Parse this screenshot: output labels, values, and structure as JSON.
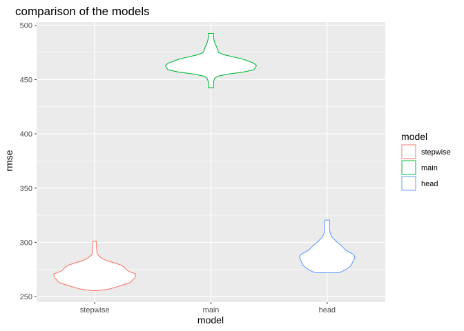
{
  "chart_data": {
    "type": "violin",
    "title": "comparison of the models",
    "xlabel": "model",
    "ylabel": "rmse",
    "categories": [
      "stepwise",
      "main",
      "head"
    ],
    "ylim": [
      245,
      503
    ],
    "yticks": [
      250,
      300,
      350,
      400,
      450,
      500
    ],
    "grid": true,
    "legend": {
      "title": "model",
      "placement": "right",
      "entries": [
        "stepwise",
        "main",
        "head"
      ]
    },
    "series": [
      {
        "name": "stepwise",
        "color": "#F8766D",
        "density": [
          {
            "y": 255.5,
            "w": 0.05
          },
          {
            "y": 257,
            "w": 0.28
          },
          {
            "y": 259,
            "w": 0.42
          },
          {
            "y": 261,
            "w": 0.56
          },
          {
            "y": 263,
            "w": 0.68
          },
          {
            "y": 265,
            "w": 0.72
          },
          {
            "y": 267,
            "w": 0.76
          },
          {
            "y": 269,
            "w": 0.78
          },
          {
            "y": 271,
            "w": 0.78
          },
          {
            "y": 273,
            "w": 0.66
          },
          {
            "y": 275,
            "w": 0.6
          },
          {
            "y": 277,
            "w": 0.57
          },
          {
            "y": 279,
            "w": 0.5
          },
          {
            "y": 281,
            "w": 0.38
          },
          {
            "y": 283,
            "w": 0.24
          },
          {
            "y": 285,
            "w": 0.15
          },
          {
            "y": 287,
            "w": 0.09
          },
          {
            "y": 289,
            "w": 0.05
          },
          {
            "y": 292,
            "w": 0.04
          },
          {
            "y": 295,
            "w": 0.035
          },
          {
            "y": 298,
            "w": 0.035
          },
          {
            "y": 301,
            "w": 0.035
          }
        ]
      },
      {
        "name": "main",
        "color": "#00BA38",
        "density": [
          {
            "y": 442.5,
            "w": 0.05
          },
          {
            "y": 445,
            "w": 0.05
          },
          {
            "y": 448,
            "w": 0.05
          },
          {
            "y": 451,
            "w": 0.07
          },
          {
            "y": 453,
            "w": 0.12
          },
          {
            "y": 455,
            "w": 0.32
          },
          {
            "y": 457,
            "w": 0.62
          },
          {
            "y": 459,
            "w": 0.82
          },
          {
            "y": 461,
            "w": 0.85
          },
          {
            "y": 463,
            "w": 0.87
          },
          {
            "y": 465,
            "w": 0.82
          },
          {
            "y": 467,
            "w": 0.72
          },
          {
            "y": 469,
            "w": 0.6
          },
          {
            "y": 471,
            "w": 0.42
          },
          {
            "y": 473,
            "w": 0.24
          },
          {
            "y": 475,
            "w": 0.15
          },
          {
            "y": 477,
            "w": 0.13
          },
          {
            "y": 480,
            "w": 0.11
          },
          {
            "y": 483,
            "w": 0.08
          },
          {
            "y": 486,
            "w": 0.06
          },
          {
            "y": 489,
            "w": 0.05
          },
          {
            "y": 492.5,
            "w": 0.05
          }
        ]
      },
      {
        "name": "head",
        "color": "#619CFF",
        "density": [
          {
            "y": 272,
            "w": 0.22
          },
          {
            "y": 273,
            "w": 0.28
          },
          {
            "y": 275,
            "w": 0.36
          },
          {
            "y": 277,
            "w": 0.42
          },
          {
            "y": 279,
            "w": 0.46
          },
          {
            "y": 281,
            "w": 0.48
          },
          {
            "y": 283,
            "w": 0.5
          },
          {
            "y": 285,
            "w": 0.52
          },
          {
            "y": 287,
            "w": 0.53
          },
          {
            "y": 289,
            "w": 0.5
          },
          {
            "y": 291,
            "w": 0.42
          },
          {
            "y": 293,
            "w": 0.35
          },
          {
            "y": 295,
            "w": 0.31
          },
          {
            "y": 297,
            "w": 0.27
          },
          {
            "y": 299,
            "w": 0.22
          },
          {
            "y": 301,
            "w": 0.17
          },
          {
            "y": 303,
            "w": 0.13
          },
          {
            "y": 305,
            "w": 0.09
          },
          {
            "y": 307,
            "w": 0.07
          },
          {
            "y": 309,
            "w": 0.055
          },
          {
            "y": 311,
            "w": 0.05
          },
          {
            "y": 314,
            "w": 0.045
          },
          {
            "y": 317,
            "w": 0.045
          },
          {
            "y": 320.5,
            "w": 0.045
          }
        ]
      }
    ]
  }
}
